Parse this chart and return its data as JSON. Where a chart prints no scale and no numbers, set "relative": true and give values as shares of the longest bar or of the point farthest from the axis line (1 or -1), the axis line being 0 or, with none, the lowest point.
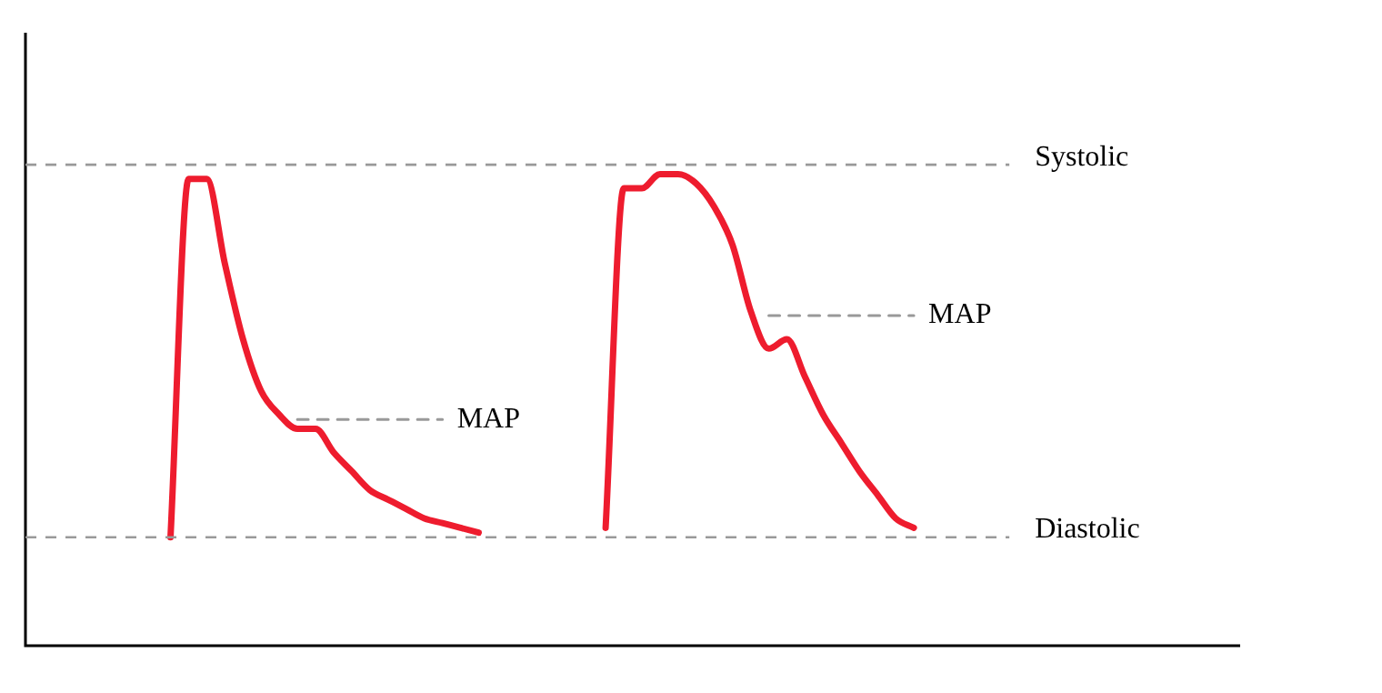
{
  "chart_data": {
    "type": "line",
    "relative": true,
    "categories": [
      null,
      null,
      null,
      null,
      null,
      null,
      null,
      null,
      null,
      null,
      null,
      null,
      null,
      null,
      null,
      null,
      null,
      null,
      null,
      null,
      null,
      null,
      null,
      null,
      null,
      null,
      null,
      null,
      null,
      null,
      null,
      null,
      null,
      null,
      null,
      null,
      null,
      null,
      null,
      null,
      null,
      null,
      null,
      null,
      null,
      null,
      null,
      null,
      null,
      null,
      null,
      null,
      null,
      null,
      null,
      null,
      null,
      null,
      null,
      null,
      null,
      null,
      null,
      null,
      null,
      null,
      null,
      null
    ],
    "series": [
      {
        "color": "#ee1c2e",
        "values": [
          null,
          null,
          null,
          null,
          null,
          null,
          null,
          null,
          0.23,
          0.99,
          0.99,
          0.81,
          0.65,
          0.54,
          0.49,
          0.46,
          0.46,
          0.41,
          0.37,
          0.33,
          0.31,
          0.29,
          0.27,
          0.26,
          0.25,
          0.24,
          null,
          null,
          null,
          null,
          null,
          null,
          null,
          null,
          null,
          null,
          null,
          null,
          null,
          null,
          null,
          null,
          null,
          null,
          null,
          null,
          null,
          null,
          null,
          null,
          null,
          null,
          null,
          null,
          null,
          null,
          null,
          null,
          null,
          null,
          null,
          null,
          null,
          null,
          null,
          null,
          null,
          null
        ]
      },
      {
        "color": "#ee1c2e",
        "values": [
          null,
          null,
          null,
          null,
          null,
          null,
          null,
          null,
          null,
          null,
          null,
          null,
          null,
          null,
          null,
          null,
          null,
          null,
          null,
          null,
          null,
          null,
          null,
          null,
          null,
          null,
          null,
          null,
          null,
          null,
          null,
          null,
          0.25,
          0.97,
          0.97,
          1,
          1,
          0.98,
          0.93,
          0.85,
          0.71,
          0.63,
          0.65,
          0.57,
          0.49,
          0.43,
          0.37,
          0.32,
          0.27,
          0.25,
          null,
          null,
          null,
          null,
          null,
          null,
          null,
          null,
          null,
          null,
          null,
          null,
          null,
          null,
          null,
          null,
          null,
          null
        ]
      },
      {
        "color": "#999999",
        "line_style": "dashed",
        "values": [
          null,
          null,
          null,
          null,
          null,
          null,
          null,
          null,
          null,
          null,
          null,
          null,
          null,
          null,
          null,
          0.48,
          0.48,
          0.48,
          0.48,
          0.48,
          0.48,
          0.48,
          0.48,
          0.48,
          null,
          null,
          null,
          null,
          null,
          null,
          null,
          null,
          null,
          null,
          null,
          null,
          null,
          null,
          null,
          null,
          null,
          null,
          null,
          null,
          null,
          null,
          null,
          null,
          null,
          null,
          null,
          null,
          null,
          null,
          null,
          null,
          null,
          null,
          null,
          null,
          null,
          null,
          null,
          null,
          null,
          null,
          null,
          null
        ]
      },
      {
        "color": "#999999",
        "line_style": "dashed",
        "values": [
          null,
          null,
          null,
          null,
          null,
          null,
          null,
          null,
          null,
          null,
          null,
          null,
          null,
          null,
          null,
          null,
          null,
          null,
          null,
          null,
          null,
          null,
          null,
          null,
          null,
          null,
          null,
          null,
          null,
          null,
          null,
          null,
          null,
          null,
          null,
          null,
          null,
          null,
          null,
          null,
          null,
          0.7,
          0.7,
          0.7,
          0.7,
          0.7,
          0.7,
          0.7,
          0.7,
          0.7,
          null,
          null,
          null,
          null,
          null,
          null,
          null,
          null,
          null,
          null,
          null,
          null,
          null,
          null,
          null,
          null,
          null,
          null
        ]
      }
    ],
    "ref_lines": [
      {
        "axis": "y",
        "value": 1.02,
        "label": "Systolic",
        "color": "#999999",
        "line_style": "dashed"
      },
      {
        "axis": "y",
        "value": 0.23,
        "label": "Diastolic",
        "color": "#999999",
        "line_style": "dashed"
      }
    ],
    "annotations": [
      "MAP",
      "MAP"
    ],
    "grid": false,
    "legend": false,
    "marker": "none",
    "line_style": "solid"
  }
}
